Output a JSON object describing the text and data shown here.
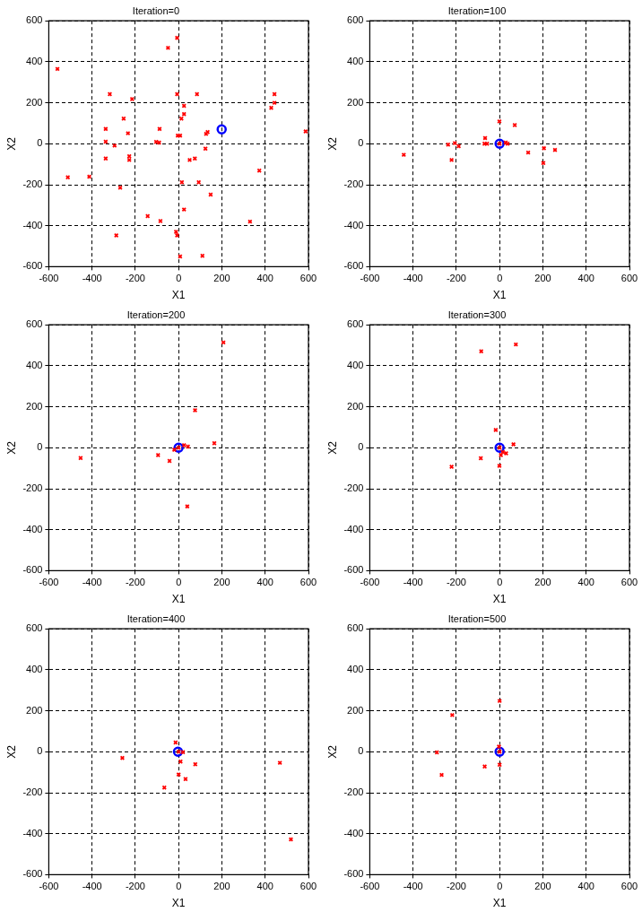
{
  "chart_data": [
    {
      "type": "scatter",
      "title": "Iteration=0",
      "xlabel": "X1",
      "ylabel": "X2",
      "xlim": [
        -600,
        600
      ],
      "ylim": [
        -600,
        600
      ],
      "xticks": [
        -600,
        -400,
        -200,
        0,
        200,
        400,
        600
      ],
      "yticks": [
        -600,
        -400,
        -200,
        0,
        200,
        400,
        600
      ],
      "grid": true,
      "series": [
        {
          "color": "#ff0000",
          "marker": "cross",
          "x": [
            -560,
            -512,
            -413,
            -337,
            -337,
            -337,
            -318,
            -296,
            -288,
            -270,
            -254,
            -234,
            -228,
            -228,
            -215,
            -143,
            -104,
            -90,
            -88,
            -84,
            -49,
            -7,
            -7,
            -12,
            -7,
            -4,
            7,
            13,
            25,
            25,
            7,
            15,
            25,
            51,
            75,
            85,
            93,
            110,
            124,
            127,
            134,
            148,
            330,
            373,
            428,
            443,
            443,
            587
          ],
          "values": [
            365,
            -164,
            -161,
            72,
            10,
            -72,
            242,
            -9,
            -447,
            -214,
            123,
            51,
            -61,
            -79,
            218,
            -353,
            9,
            6,
            72,
            -377,
            468,
            517,
            242,
            -430,
            -447,
            40,
            40,
            123,
            185,
            145,
            -550,
            -188,
            -321,
            -79,
            -72,
            242,
            -188,
            -547,
            -24,
            48,
            57,
            -248,
            -380,
            -131,
            175,
            242,
            200,
            60
          ]
        },
        {
          "color": "#0000ff",
          "marker": "circle",
          "x": [
            199
          ],
          "values": [
            70
          ]
        }
      ]
    },
    {
      "type": "scatter",
      "title": "Iteration=100",
      "xlabel": "X1",
      "ylabel": "X2",
      "xlim": [
        -600,
        600
      ],
      "ylim": [
        -600,
        600
      ],
      "xticks": [
        -600,
        -400,
        -200,
        0,
        200,
        400,
        600
      ],
      "yticks": [
        -600,
        -400,
        -200,
        0,
        200,
        400,
        600
      ],
      "grid": true,
      "series": [
        {
          "color": "#ff0000",
          "marker": "cross",
          "x": [
            -443,
            -238,
            -207,
            -189,
            -222,
            -67,
            -70,
            -58,
            -1,
            70,
            28,
            37,
            132,
            205,
            202,
            256,
            0
          ],
          "values": [
            -54,
            -4,
            3,
            -12,
            -79,
            28,
            0,
            0,
            109,
            91,
            6,
            0,
            -43,
            -22,
            -94,
            -30,
            0
          ]
        },
        {
          "color": "#0000ff",
          "marker": "circle",
          "x": [
            0
          ],
          "values": [
            0
          ]
        }
      ]
    },
    {
      "type": "scatter",
      "title": "Iteration=200",
      "xlabel": "X1",
      "ylabel": "X2",
      "xlim": [
        -600,
        600
      ],
      "ylim": [
        -600,
        600
      ],
      "xticks": [
        -600,
        -400,
        -200,
        0,
        200,
        400,
        600
      ],
      "yticks": [
        -600,
        -400,
        -200,
        0,
        200,
        400,
        600
      ],
      "grid": true,
      "series": [
        {
          "color": "#ff0000",
          "marker": "cross",
          "x": [
            -453,
            -95,
            -42,
            -20,
            25,
            43,
            76,
            165,
            207,
            40,
            0
          ],
          "values": [
            -50,
            -36,
            -64,
            -10,
            12,
            6,
            183,
            22,
            514,
            -286,
            0
          ]
        },
        {
          "color": "#0000ff",
          "marker": "circle",
          "x": [
            0
          ],
          "values": [
            0
          ]
        }
      ]
    },
    {
      "type": "scatter",
      "title": "Iteration=300",
      "xlabel": "X1",
      "ylabel": "X2",
      "xlim": [
        -600,
        600
      ],
      "ylim": [
        -600,
        600
      ],
      "xticks": [
        -600,
        -400,
        -200,
        0,
        200,
        400,
        600
      ],
      "yticks": [
        -600,
        -400,
        -200,
        0,
        200,
        400,
        600
      ],
      "grid": true,
      "series": [
        {
          "color": "#ff0000",
          "marker": "cross",
          "x": [
            -85,
            75,
            -18,
            64,
            -87,
            -222,
            -1,
            6,
            15,
            30,
            0
          ],
          "values": [
            471,
            504,
            87,
            17,
            -51,
            -93,
            -88,
            -36,
            -21,
            -27,
            0
          ]
        },
        {
          "color": "#0000ff",
          "marker": "circle",
          "x": [
            0
          ],
          "values": [
            0
          ]
        }
      ]
    },
    {
      "type": "scatter",
      "title": "Iteration=400",
      "xlabel": "X1",
      "ylabel": "X2",
      "xlim": [
        -600,
        600
      ],
      "ylim": [
        -600,
        600
      ],
      "xticks": [
        -600,
        -400,
        -200,
        0,
        200,
        400,
        600
      ],
      "yticks": [
        -600,
        -400,
        -200,
        0,
        200,
        400,
        600
      ],
      "grid": true,
      "series": [
        {
          "color": "#ff0000",
          "marker": "cross",
          "x": [
            -260,
            -14,
            20,
            9,
            77,
            0,
            32,
            -66,
            468,
            519,
            0
          ],
          "values": [
            -30,
            45,
            -2,
            -48,
            -61,
            -111,
            -133,
            -175,
            -54,
            -428,
            0
          ]
        },
        {
          "color": "#0000ff",
          "marker": "circle",
          "x": [
            -3
          ],
          "values": [
            0
          ]
        }
      ]
    },
    {
      "type": "scatter",
      "title": "Iteration=500",
      "xlabel": "X1",
      "ylabel": "X2",
      "xlim": [
        -600,
        600
      ],
      "ylim": [
        -600,
        600
      ],
      "xticks": [
        -600,
        -400,
        -200,
        0,
        200,
        400,
        600
      ],
      "yticks": [
        -600,
        -400,
        -200,
        0,
        200,
        400,
        600
      ],
      "grid": true,
      "series": [
        {
          "color": "#ff0000",
          "marker": "cross",
          "x": [
            -219,
            -290,
            -268,
            -69,
            0,
            -3,
            0,
            0
          ],
          "values": [
            179,
            -3,
            -113,
            -72,
            248,
            25,
            -63,
            0
          ]
        },
        {
          "color": "#0000ff",
          "marker": "circle",
          "x": [
            0
          ],
          "values": [
            0
          ]
        }
      ]
    }
  ]
}
